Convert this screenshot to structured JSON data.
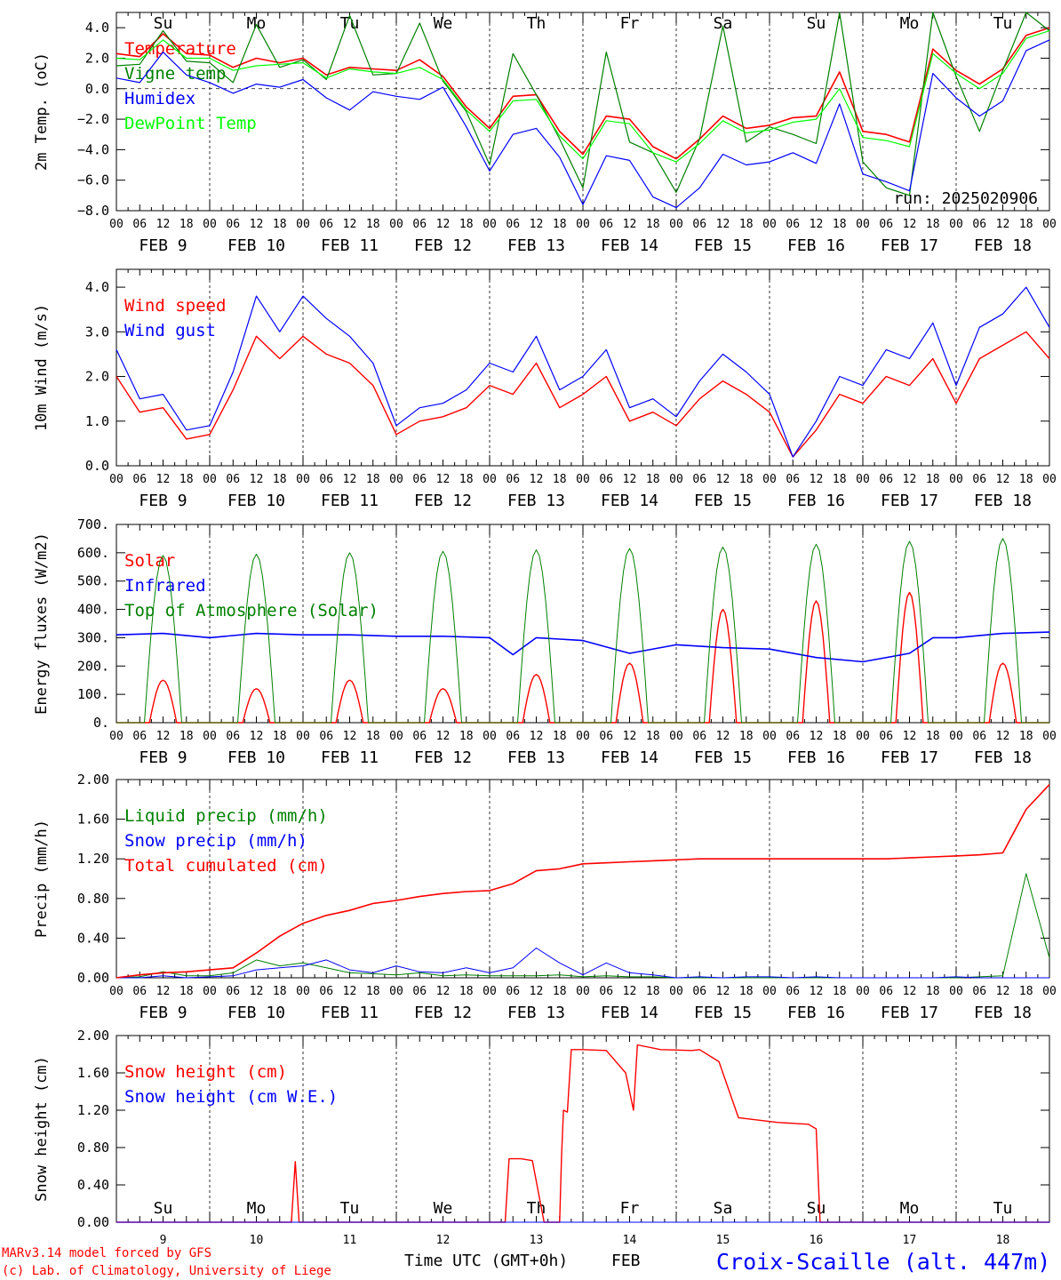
{
  "run_label": "run: 2025020906",
  "hour_labels": [
    "00",
    "06",
    "12",
    "18"
  ],
  "date_labels": [
    "FEB  9",
    "FEB 10",
    "FEB 11",
    "FEB 12",
    "FEB 13",
    "FEB 14",
    "FEB 15",
    "FEB 16",
    "FEB 17",
    "FEB 18"
  ],
  "weekday_labels": [
    "Su",
    "Mo",
    "Tu",
    "We",
    "Th",
    "Fr",
    "Sa",
    "Su",
    "Mo",
    "Tu"
  ],
  "weekday_colors": [
    "#ff0000",
    "#000000",
    "#000000",
    "#000000",
    "#000000",
    "#000000",
    "#ff0000",
    "#ff0000",
    "#000000",
    "#000000"
  ],
  "bottom_day_numbers": [
    "9",
    "10",
    "11",
    "12",
    "13",
    "14",
    "15",
    "16",
    "17",
    "18"
  ],
  "footer": {
    "model_line": "MARv3.14 model forced by GFS",
    "copyright_line": "(c) Lab. of Climatology, University of Liege",
    "time_axis_label": "Time UTC (GMT+0h)",
    "month_label": "FEB",
    "station_title": "Croix-Scaille (alt. 447m)"
  },
  "colors": {
    "red": "#ff0000",
    "green": "#008000",
    "blue": "#0000ff",
    "light_green": "#00ff00"
  },
  "chart_data": [
    {
      "type": "line",
      "ylabel": "2m Temp. (oC)",
      "ylim": [
        -8,
        5
      ],
      "yticks": [
        4,
        2,
        0,
        -2,
        -4,
        -6,
        -8
      ],
      "ytick_labels": [
        "4.0",
        "2.0",
        "0.0",
        "−2.0",
        "−4.0",
        "−6.0",
        "−8.0"
      ],
      "x": [
        0,
        6,
        12,
        18,
        24,
        30,
        36,
        42,
        48,
        54,
        60,
        66,
        72,
        78,
        84,
        90,
        96,
        102,
        108,
        114,
        120,
        126,
        132,
        138,
        144,
        150,
        156,
        162,
        168,
        174,
        180,
        186,
        192,
        198,
        204,
        210,
        216,
        222,
        228,
        234,
        240
      ],
      "zero_line": true,
      "series": [
        {
          "name": "Temperature",
          "color": "#ff0000",
          "width": 1.6,
          "values": [
            2.3,
            2.1,
            3.6,
            2.3,
            2.2,
            1.4,
            2.0,
            1.7,
            2.0,
            0.9,
            1.4,
            1.3,
            1.2,
            1.9,
            0.8,
            -1.2,
            -2.6,
            -0.5,
            -0.4,
            -2.8,
            -4.3,
            -1.8,
            -2.0,
            -3.8,
            -4.6,
            -3.3,
            -1.8,
            -2.6,
            -2.4,
            -1.9,
            -1.8,
            1.1,
            -2.8,
            -3.0,
            -3.5,
            2.6,
            1.2,
            0.3,
            1.3,
            3.5,
            4.0
          ]
        },
        {
          "name": "Vigne temp",
          "color": "#008000",
          "width": 1.2,
          "values": [
            1.5,
            1.6,
            3.8,
            1.8,
            1.7,
            0.4,
            4.2,
            1.4,
            1.9,
            0.6,
            4.8,
            0.9,
            1.0,
            4.3,
            0.5,
            -1.5,
            -5.0,
            2.3,
            -0.4,
            -3.3,
            -6.5,
            2.4,
            -3.5,
            -4.2,
            -6.8,
            -3.3,
            4.1,
            -3.5,
            -2.5,
            -3.0,
            -3.6,
            5.0,
            -4.8,
            -6.5,
            -7.0,
            5.0,
            0.8,
            -2.8,
            1.2,
            5.0,
            3.8
          ]
        },
        {
          "name": "Humidex",
          "color": "#0000ff",
          "width": 1.2,
          "values": [
            0.7,
            0.4,
            2.4,
            0.9,
            0.4,
            -0.3,
            0.3,
            0.1,
            0.6,
            -0.6,
            -1.4,
            -0.2,
            -0.5,
            -0.7,
            0.1,
            -2.5,
            -5.4,
            -3.0,
            -2.6,
            -4.5,
            -7.6,
            -4.4,
            -4.7,
            -7.1,
            -7.8,
            -6.5,
            -4.3,
            -5.0,
            -4.8,
            -4.2,
            -4.9,
            -1.0,
            -5.6,
            -6.1,
            -6.7,
            1.0,
            -0.6,
            -1.8,
            -0.8,
            2.5,
            3.2
          ]
        },
        {
          "name": "DewPoint Temp",
          "color": "#00ff00",
          "width": 1.2,
          "values": [
            2.0,
            1.9,
            3.2,
            2.0,
            2.0,
            1.2,
            1.5,
            1.6,
            1.7,
            0.7,
            1.3,
            1.1,
            1.0,
            1.4,
            0.6,
            -1.4,
            -2.8,
            -0.8,
            -0.7,
            -3.1,
            -4.6,
            -2.1,
            -2.3,
            -4.2,
            -4.8,
            -3.6,
            -2.1,
            -2.9,
            -2.7,
            -2.2,
            -2.0,
            0.0,
            -3.2,
            -3.4,
            -3.8,
            2.3,
            1.0,
            0.0,
            1.0,
            3.3,
            3.8
          ]
        }
      ],
      "legend_placement": "top-left"
    },
    {
      "type": "line",
      "ylabel": "10m Wind (m/s)",
      "ylim": [
        0,
        4.4
      ],
      "yticks": [
        0,
        1,
        2,
        3,
        4
      ],
      "ytick_labels": [
        "0.0",
        "1.0",
        "2.0",
        "3.0",
        "4.0"
      ],
      "x": [
        0,
        6,
        12,
        18,
        24,
        30,
        36,
        42,
        48,
        54,
        60,
        66,
        72,
        78,
        84,
        90,
        96,
        102,
        108,
        114,
        120,
        126,
        132,
        138,
        144,
        150,
        156,
        162,
        168,
        174,
        180,
        186,
        192,
        198,
        204,
        210,
        216,
        222,
        228,
        234,
        240
      ],
      "series": [
        {
          "name": "Wind speed",
          "color": "#ff0000",
          "width": 1.4,
          "values": [
            2.0,
            1.2,
            1.3,
            0.6,
            0.7,
            1.7,
            2.9,
            2.4,
            2.9,
            2.5,
            2.3,
            1.8,
            0.7,
            1.0,
            1.1,
            1.3,
            1.8,
            1.6,
            2.3,
            1.3,
            1.6,
            2.0,
            1.0,
            1.2,
            0.9,
            1.5,
            1.9,
            1.6,
            1.2,
            0.2,
            0.8,
            1.6,
            1.4,
            2.0,
            1.8,
            2.4,
            1.4,
            2.4,
            2.7,
            3.0,
            2.4
          ]
        },
        {
          "name": "Wind gust",
          "color": "#0000ff",
          "width": 1.2,
          "values": [
            2.6,
            1.5,
            1.6,
            0.8,
            0.9,
            2.1,
            3.8,
            3.0,
            3.8,
            3.3,
            2.9,
            2.3,
            0.9,
            1.3,
            1.4,
            1.7,
            2.3,
            2.1,
            2.9,
            1.7,
            2.0,
            2.6,
            1.3,
            1.5,
            1.1,
            1.9,
            2.5,
            2.1,
            1.6,
            0.2,
            1.0,
            2.0,
            1.8,
            2.6,
            2.4,
            3.2,
            1.8,
            3.1,
            3.4,
            4.0,
            3.1
          ]
        }
      ],
      "legend_placement": "top-left"
    },
    {
      "type": "line",
      "ylabel": "Energy fluxes (W/m2)",
      "ylim": [
        0,
        700
      ],
      "yticks": [
        0,
        100,
        200,
        300,
        400,
        500,
        600,
        700
      ],
      "ytick_labels": [
        "0.",
        "100.",
        "200.",
        "300.",
        "400.",
        "500.",
        "600.",
        "700."
      ],
      "series": [
        {
          "name": "Solar",
          "color": "#ff0000",
          "width": 1.4,
          "peak_hours": [
            12,
            12,
            12,
            12,
            12,
            12,
            12,
            12,
            12,
            12
          ],
          "day_peaks": [
            150,
            120,
            150,
            120,
            170,
            210,
            400,
            430,
            460,
            210
          ]
        },
        {
          "name": "Infrared",
          "color": "#0000ff",
          "width": 1.6,
          "x": [
            0,
            12,
            24,
            36,
            48,
            60,
            72,
            84,
            96,
            102,
            108,
            120,
            132,
            144,
            156,
            168,
            180,
            192,
            204,
            210,
            216,
            228,
            240
          ],
          "values": [
            310,
            315,
            300,
            315,
            310,
            310,
            305,
            305,
            300,
            240,
            300,
            290,
            245,
            275,
            265,
            260,
            230,
            215,
            245,
            300,
            300,
            315,
            320
          ]
        },
        {
          "name": "Top of Atmosphere (Solar)",
          "color": "#008000",
          "width": 1.0,
          "day_peaks": [
            590,
            595,
            600,
            605,
            610,
            615,
            620,
            630,
            640,
            650
          ]
        }
      ],
      "legend_placement": "top-left"
    },
    {
      "type": "line",
      "ylabel": "Precip (mm/h)",
      "ylim": [
        0,
        2
      ],
      "yticks": [
        0,
        0.4,
        0.8,
        1.2,
        1.6,
        2.0
      ],
      "ytick_labels": [
        "0.00",
        "0.40",
        "0.80",
        "1.20",
        "1.60",
        "2.00"
      ],
      "x": [
        0,
        6,
        12,
        18,
        24,
        30,
        36,
        42,
        48,
        54,
        60,
        66,
        72,
        78,
        84,
        90,
        96,
        102,
        108,
        114,
        120,
        126,
        132,
        138,
        144,
        150,
        156,
        162,
        168,
        174,
        180,
        186,
        192,
        198,
        204,
        210,
        216,
        222,
        228,
        234,
        240
      ],
      "series": [
        {
          "name": "Liquid precip (mm/h)",
          "color": "#008000",
          "width": 1.0,
          "values": [
            0,
            0.01,
            0.06,
            0.02,
            0.02,
            0.05,
            0.18,
            0.12,
            0.15,
            0.1,
            0.05,
            0.04,
            0.03,
            0.05,
            0.02,
            0.03,
            0.02,
            0.02,
            0.02,
            0.03,
            0.01,
            0.02,
            0.01,
            0.01,
            0.0,
            0.0,
            0.0,
            0.0,
            0.0,
            0.0,
            0.0,
            0.0,
            0.0,
            0.0,
            0.0,
            0.0,
            0.0,
            0.01,
            0.02,
            1.05,
            0.2
          ]
        },
        {
          "name": "Snow precip (mm/h)",
          "color": "#0000ff",
          "width": 1.0,
          "values": [
            0,
            0.0,
            0.02,
            0.0,
            0.01,
            0.02,
            0.08,
            0.1,
            0.12,
            0.18,
            0.08,
            0.05,
            0.12,
            0.06,
            0.05,
            0.1,
            0.05,
            0.1,
            0.3,
            0.15,
            0.03,
            0.15,
            0.05,
            0.03,
            0.0,
            0.01,
            0.0,
            0.01,
            0.01,
            0.0,
            0.01,
            0.0,
            0.0,
            0.0,
            0.0,
            0.0,
            0.01,
            0.0,
            0.0,
            0.0,
            0.0
          ]
        },
        {
          "name": "Total cumulated (cm)",
          "color": "#ff0000",
          "width": 1.6,
          "values": [
            0.0,
            0.03,
            0.05,
            0.06,
            0.08,
            0.1,
            0.25,
            0.42,
            0.55,
            0.63,
            0.68,
            0.75,
            0.78,
            0.82,
            0.85,
            0.87,
            0.88,
            0.95,
            1.08,
            1.1,
            1.15,
            1.16,
            1.17,
            1.18,
            1.19,
            1.2,
            1.2,
            1.2,
            1.2,
            1.2,
            1.2,
            1.2,
            1.2,
            1.2,
            1.21,
            1.22,
            1.23,
            1.24,
            1.26,
            1.7,
            1.95
          ]
        }
      ],
      "legend_placement": "top-left"
    },
    {
      "type": "line",
      "ylabel": "Snow height (cm)",
      "ylim": [
        0,
        2
      ],
      "yticks": [
        0,
        0.4,
        0.8,
        1.2,
        1.6,
        2.0
      ],
      "ytick_labels": [
        "0.00",
        "0.40",
        "0.80",
        "1.20",
        "1.60",
        "2.00"
      ],
      "series": [
        {
          "name": "Snow height (cm)",
          "color": "#ff0000",
          "width": 1.4,
          "x": [
            0,
            45,
            46,
            47,
            48,
            100,
            101,
            104,
            107,
            110,
            111,
            114,
            114.5,
            115,
            116,
            117,
            120,
            126,
            131,
            133,
            134,
            140,
            148,
            150,
            155,
            160,
            170,
            178,
            180,
            181,
            240
          ],
          "values": [
            0,
            0,
            0.65,
            0,
            0,
            0,
            0.68,
            0.68,
            0.66,
            0.0,
            0.0,
            0.0,
            0.7,
            1.2,
            1.18,
            1.85,
            1.85,
            1.84,
            1.6,
            1.2,
            1.9,
            1.85,
            1.84,
            1.85,
            1.72,
            1.12,
            1.07,
            1.05,
            1.0,
            0.0,
            0.0
          ]
        },
        {
          "name": "Snow height (cm W.E.)",
          "color": "#0000ff",
          "width": 1.0,
          "x": [
            0,
            240
          ],
          "values": [
            0,
            0
          ]
        }
      ],
      "legend_placement": "top-left"
    }
  ]
}
